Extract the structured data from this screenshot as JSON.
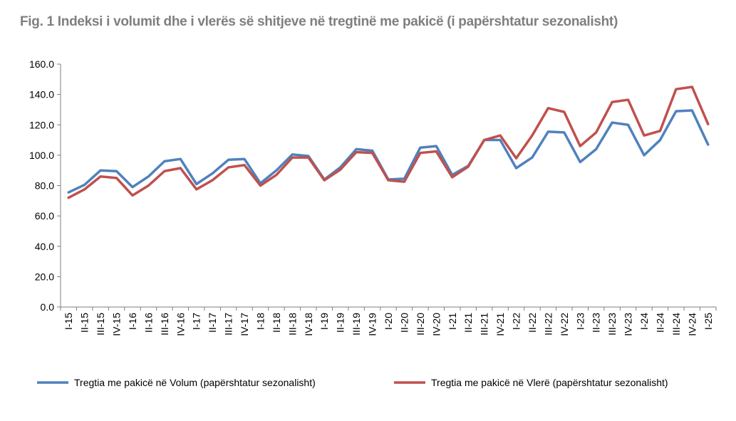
{
  "title": "Fig. 1 Indeksi i volumit dhe i vlerës së shitjeve në tregtinë me pakicë (i papërshtatur sezonalisht)",
  "chart_data": {
    "type": "line",
    "title": "Fig. 1 Indeksi i volumit dhe i vlerës së shitjeve në tregtinë me pakicë (i papërshtatur sezonalisht)",
    "xlabel": "",
    "ylabel": "",
    "ylim": [
      0,
      160
    ],
    "yticks": [
      "0.0",
      "20.0",
      "40.0",
      "60.0",
      "80.0",
      "100.0",
      "120.0",
      "140.0",
      "160.0"
    ],
    "grid": false,
    "legend": "bottom",
    "categories": [
      "I-15",
      "II-15",
      "III-15",
      "IV-15",
      "I-16",
      "II-16",
      "III-16",
      "IV-16",
      "I-17",
      "II-17",
      "III-17",
      "IV-17",
      "I-18",
      "II-18",
      "III-18",
      "IV-18",
      "I-19",
      "II-19",
      "III-19",
      "IV-19",
      "I-20",
      "II-20",
      "III-20",
      "IV-20",
      "I-21",
      "II-21",
      "III-21",
      "IV-21",
      "I-22",
      "II-22",
      "III-22",
      "IV-22",
      "I-23",
      "II-23",
      "III-23",
      "IV-23",
      "I-24",
      "II-24",
      "III-24",
      "IV-24",
      "I-25"
    ],
    "series": [
      {
        "name": "Tregtia me pakicë në Volum (papërshtatur sezonalisht)",
        "color": "#4f81bd",
        "values": [
          75.5,
          80.5,
          90,
          89.5,
          79,
          86,
          96,
          97.5,
          81,
          88,
          97,
          97.5,
          81.5,
          90,
          100.5,
          99.5,
          84,
          92,
          104,
          103,
          84,
          84.5,
          105,
          106,
          87,
          93,
          110,
          110,
          91.5,
          98.5,
          115.5,
          115,
          95.5,
          104,
          121.5,
          120,
          100,
          110,
          129,
          129.5,
          107
        ]
      },
      {
        "name": "Tregtia me pakicë në Vlerë (papërshtatur sezonalisht)",
        "color": "#c0504d",
        "values": [
          72,
          77.5,
          86,
          85,
          73.5,
          80,
          89.5,
          91.5,
          77.5,
          83.5,
          92,
          93.5,
          80,
          87,
          98.5,
          98.5,
          83.5,
          90.5,
          102,
          101.5,
          83.5,
          82.5,
          101.5,
          102.5,
          85.5,
          92.5,
          110,
          113,
          98,
          113,
          131,
          128.5,
          106,
          115,
          135,
          136.5,
          113,
          116,
          143.5,
          145,
          120.5
        ]
      }
    ]
  }
}
